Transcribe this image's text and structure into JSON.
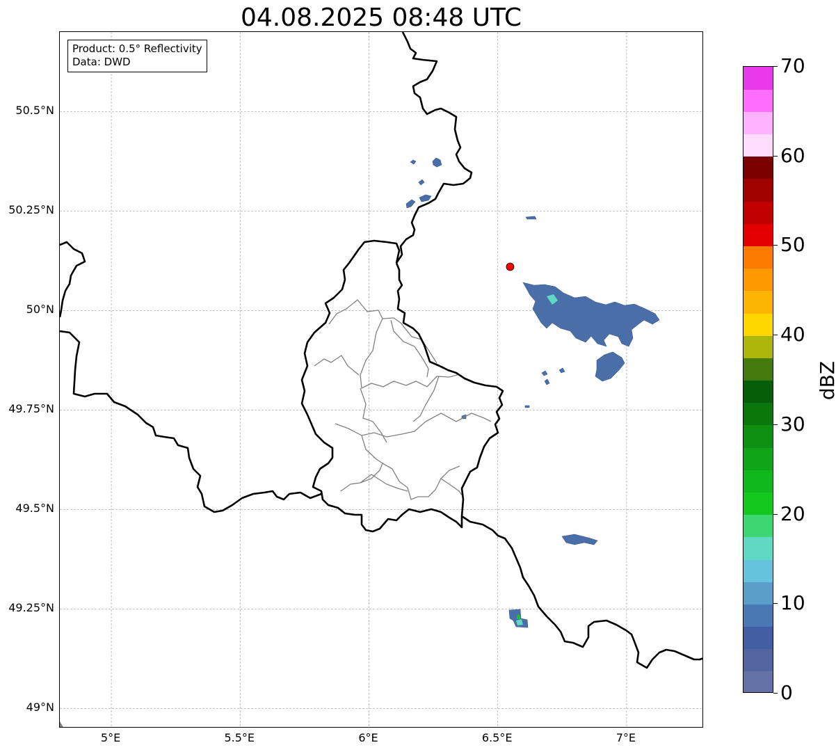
{
  "title": "04.08.2025 08:48 UTC",
  "info_box": {
    "product": "Product: 0.5° Reflectivity",
    "data": "Data: DWD"
  },
  "map": {
    "lon_range": [
      4.8,
      7.3
    ],
    "lat_range": [
      48.95,
      50.7
    ],
    "lat_ticks": [
      {
        "value": 50.5,
        "label": "50.5°N"
      },
      {
        "value": 50.25,
        "label": "50.25°N"
      },
      {
        "value": 50.0,
        "label": "50°N"
      },
      {
        "value": 49.75,
        "label": "49.75°N"
      },
      {
        "value": 49.5,
        "label": "49.5°N"
      },
      {
        "value": 49.25,
        "label": "49.25°N"
      },
      {
        "value": 49.0,
        "label": "49°N"
      }
    ],
    "lon_ticks": [
      {
        "value": 5.0,
        "label": "5°E"
      },
      {
        "value": 5.5,
        "label": "5.5°E"
      },
      {
        "value": 6.0,
        "label": "6°E"
      },
      {
        "value": 6.5,
        "label": "6.5°E"
      },
      {
        "value": 7.0,
        "label": "7°E"
      }
    ],
    "radar_site": {
      "lon": 6.548,
      "lat": 50.11,
      "color": "#ff0000"
    },
    "colors": {
      "border": "#000000",
      "admin": "#808080",
      "grid": "#b0b0b0",
      "echo": "#4a6fa8"
    }
  },
  "colorbar": {
    "label": "dBZ",
    "min": 0,
    "max": 70,
    "tick_labels": [
      "0",
      "10",
      "20",
      "30",
      "40",
      "50",
      "60",
      "70"
    ],
    "colors": [
      "#6472a8",
      "#5265a0",
      "#425ea3",
      "#4a78b2",
      "#5a9ec9",
      "#66c2de",
      "#5fd8c4",
      "#3cd672",
      "#12c81c",
      "#10b81c",
      "#10a418",
      "#0e8e12",
      "#0a760c",
      "#075e0a",
      "#447a0b",
      "#adb40a",
      "#fdd600",
      "#fdb402",
      "#fd9800",
      "#fd7a00",
      "#e40000",
      "#c10000",
      "#a00000",
      "#7a0000",
      "#ffdcff",
      "#ffb2ff",
      "#ff6eff",
      "#e838e8"
    ]
  }
}
